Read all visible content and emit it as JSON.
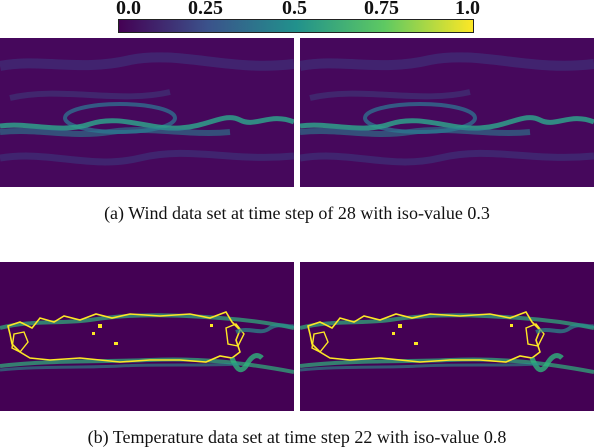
{
  "colorbar": {
    "ticks": [
      "0.0",
      "0.25",
      "0.5",
      "0.75",
      "1.0"
    ],
    "colormap": [
      "#440154",
      "#3b528b",
      "#21918c",
      "#5ec962",
      "#fde725"
    ]
  },
  "figures": [
    {
      "caption": "(a)  Wind data set at time step of 28 with iso-value 0.3",
      "dataset": "wind",
      "background_color": "#46085c",
      "feature_color": "#2f6e8e"
    },
    {
      "caption": "(b)  Temperature data set at time step 22 with iso-value 0.8",
      "dataset": "temperature",
      "background_color": "#440154",
      "isoline_color": "#fde725",
      "feature_color": "#2fb47c"
    }
  ]
}
